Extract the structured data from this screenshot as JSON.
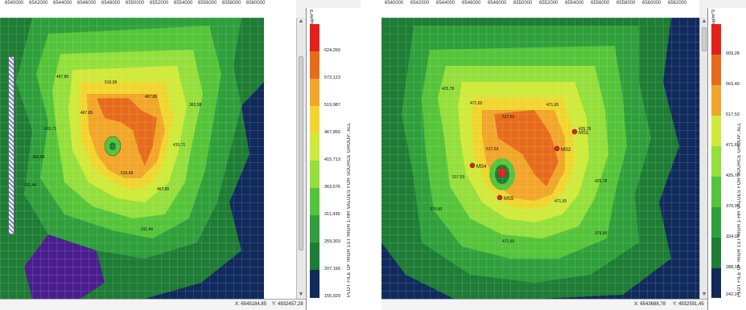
{
  "colors": {
    "dark_blue": "#102a5c",
    "purple": "#4a1e8e",
    "dark_green": "#1e7c34",
    "green": "#2f9f3b",
    "mid_green": "#55c43a",
    "light_green": "#94df3b",
    "yellow_green": "#cfea3a",
    "yellow": "#f1d52e",
    "orange": "#f1a62a",
    "dark_orange": "#e66c1c",
    "red": "#e3201a"
  },
  "left": {
    "ruler_labels": [
      "6540000",
      "6542000",
      "6544000",
      "6546000",
      "6548000",
      "6550000",
      "6552000",
      "6554000",
      "6556000",
      "6558000",
      "6560000"
    ],
    "legend_unit": "ug/m^3",
    "legend_values": [
      "624,260",
      "572,123",
      "519,987",
      "467,850",
      "415,713",
      "363,576",
      "311,439",
      "259,303",
      "207,166",
      "155,029"
    ],
    "legend_title": "PLOT FILE OF HIGH 1ST HIGH 1-HR VALUES FOR SOURCE GROUP: ALL",
    "contour_labels": [
      "467,85",
      "519,99",
      "467,85",
      "415,71",
      "363,58",
      "311,44",
      "519,99",
      "467,85",
      "415,71",
      "363,58",
      "311,44",
      "467,85"
    ],
    "status_x": "X: 6545184,85",
    "status_y": "Y: 4932457,28"
  },
  "right": {
    "ruler_labels": [
      "6540000",
      "6542000",
      "6544000",
      "6546000",
      "6548000",
      "6550000",
      "6552000",
      "6554000",
      "6556000",
      "6558000",
      "6560000",
      "6562000"
    ],
    "legend_unit": "ug/m^3",
    "legend_values": [
      "609,28",
      "563,40",
      "517,53",
      "471,65",
      "425,78",
      "379,90",
      "334,02",
      "288,15",
      "242,27"
    ],
    "legend_title": "PLOT FILE OF HIGH 1ST HIGH 1-HR VALUES FOR SOURCE GROUP: ALL",
    "receptors": [
      "MS1",
      "MS2",
      "MS4",
      "MS5"
    ],
    "contour_labels": [
      "425,78",
      "471,65",
      "517,53",
      "471,65",
      "425,78",
      "379,90",
      "517,53",
      "471,65",
      "425,78",
      "517,53",
      "471,65",
      "379,90"
    ],
    "status_x": "X: 6543688,78",
    "status_y": "Y: 4932591,45"
  }
}
